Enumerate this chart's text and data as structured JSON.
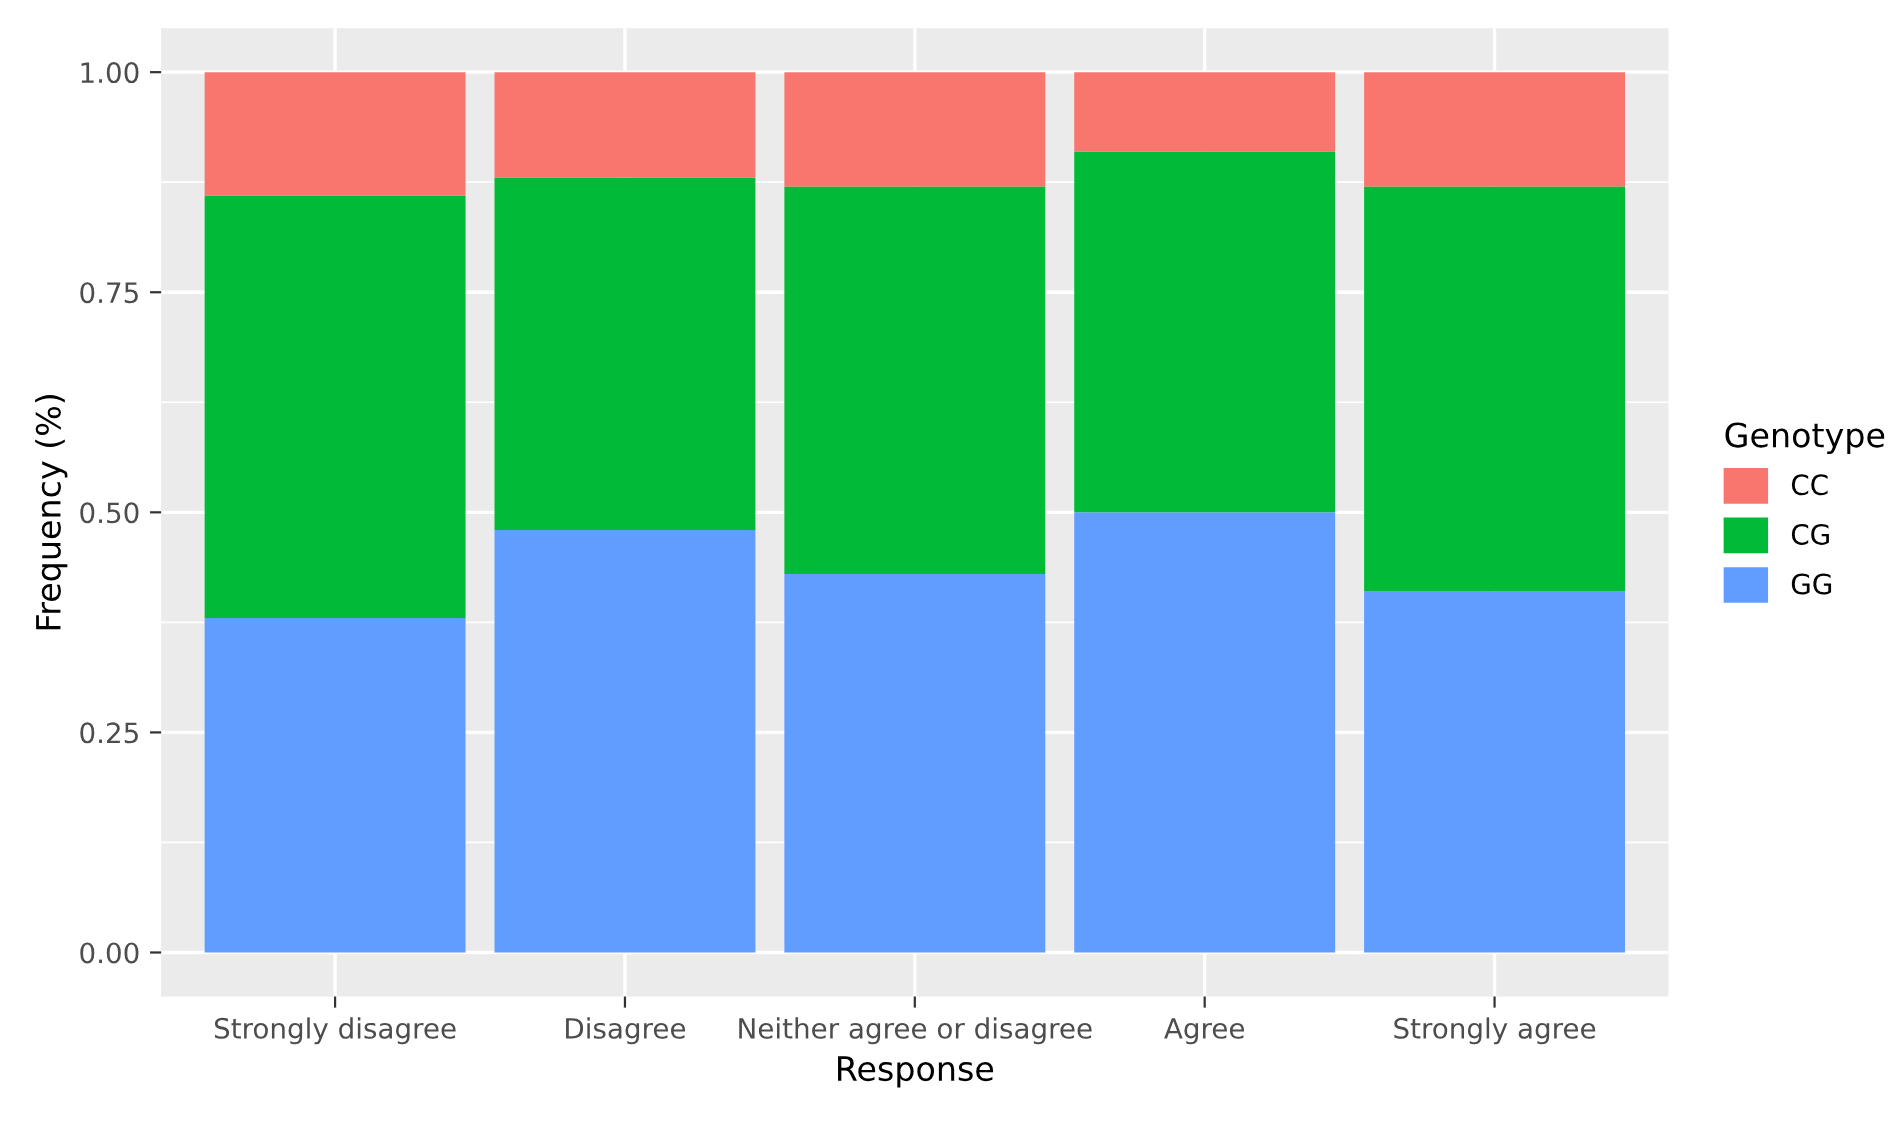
{
  "chart_data": {
    "type": "bar",
    "stacked": true,
    "xlabel": "Response",
    "ylabel": "Frequency (%)",
    "legend_title": "Genotype",
    "legend": "right",
    "grid": true,
    "categories": [
      "Strongly disagree",
      "Disagree",
      "Neither agree or disagree",
      "Agree",
      "Strongly agree"
    ],
    "ylim": [
      -0.05,
      1.05
    ],
    "yticks": [
      {
        "value": 0,
        "label": "0.00"
      },
      {
        "value": 0.25,
        "label": "0.25"
      },
      {
        "value": 0.5,
        "label": "0.50"
      },
      {
        "value": 0.75,
        "label": "0.75"
      },
      {
        "value": 1,
        "label": "1.00"
      }
    ],
    "series": [
      {
        "name": "GG",
        "color": "#619cff",
        "values": [
          0.38,
          0.48,
          0.43,
          0.5,
          0.41
        ]
      },
      {
        "name": "CG",
        "color": "#00ba38",
        "values": [
          0.48,
          0.4,
          0.44,
          0.41,
          0.46
        ]
      },
      {
        "name": "CC",
        "color": "#f8766d",
        "values": [
          0.14,
          0.12,
          0.13,
          0.09,
          0.13
        ]
      }
    ]
  }
}
